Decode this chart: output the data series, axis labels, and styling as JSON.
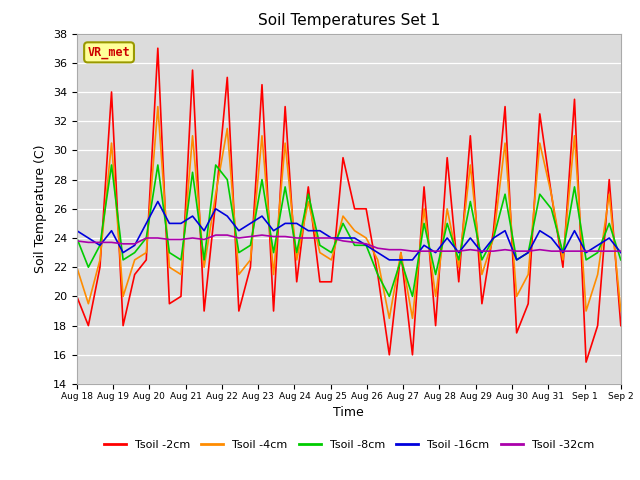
{
  "title": "Soil Temperatures Set 1",
  "xlabel": "Time",
  "ylabel": "Soil Temperature (C)",
  "ylim": [
    14,
    38
  ],
  "yticks": [
    14,
    16,
    18,
    20,
    22,
    24,
    26,
    28,
    30,
    32,
    34,
    36,
    38
  ],
  "bg_color": "#dcdcdc",
  "annotation_text": "VR_met",
  "annotation_color": "#cc0000",
  "annotation_bg": "#ffff99",
  "annotation_border": "#999900",
  "x_labels": [
    "Aug 18",
    "Aug 19",
    "Aug 20",
    "Aug 21",
    "Aug 22",
    "Aug 23",
    "Aug 24",
    "Aug 25",
    "Aug 26",
    "Aug 27",
    "Aug 28",
    "Aug 29",
    "Aug 30",
    "Aug 31",
    "Sep 1",
    "Sep 2"
  ],
  "colors": {
    "Tsoil -2cm": "#ff0000",
    "Tsoil -4cm": "#ff8c00",
    "Tsoil -8cm": "#00cc00",
    "Tsoil -16cm": "#0000dd",
    "Tsoil -32cm": "#aa00aa"
  },
  "series": {
    "Tsoil -2cm": [
      20.0,
      18.0,
      22.0,
      34.0,
      18.0,
      21.5,
      22.5,
      37.0,
      19.5,
      20.0,
      35.5,
      19.0,
      26.5,
      35.0,
      19.0,
      22.0,
      34.5,
      19.0,
      33.0,
      21.0,
      27.5,
      21.0,
      21.0,
      29.5,
      26.0,
      26.0,
      21.5,
      16.0,
      23.0,
      16.0,
      27.5,
      18.0,
      29.5,
      21.0,
      31.0,
      19.5,
      24.5,
      33.0,
      17.5,
      19.5,
      32.5,
      27.0,
      22.0,
      33.5,
      15.5,
      18.0,
      28.0,
      18.0
    ],
    "Tsoil -4cm": [
      22.0,
      19.5,
      22.5,
      30.5,
      20.0,
      22.5,
      23.0,
      33.0,
      22.0,
      21.5,
      31.0,
      22.0,
      27.0,
      31.5,
      21.5,
      22.5,
      31.0,
      21.5,
      30.5,
      22.5,
      26.5,
      23.0,
      22.5,
      25.5,
      24.5,
      24.0,
      22.5,
      18.5,
      23.0,
      18.5,
      26.0,
      20.0,
      26.0,
      22.0,
      29.0,
      21.5,
      24.0,
      30.5,
      20.0,
      21.5,
      30.5,
      27.0,
      22.5,
      31.0,
      19.0,
      21.5,
      27.0,
      19.0
    ],
    "Tsoil -8cm": [
      24.0,
      22.0,
      23.5,
      29.0,
      22.5,
      23.0,
      24.0,
      29.0,
      23.0,
      22.5,
      28.5,
      22.5,
      29.0,
      28.0,
      23.0,
      23.5,
      28.0,
      23.0,
      27.5,
      23.0,
      27.0,
      23.5,
      23.0,
      25.0,
      23.5,
      23.5,
      21.5,
      20.0,
      22.5,
      20.0,
      25.0,
      21.5,
      25.0,
      22.5,
      26.5,
      22.5,
      24.0,
      27.0,
      22.5,
      23.0,
      27.0,
      26.0,
      23.0,
      27.5,
      22.5,
      23.0,
      25.0,
      22.5
    ],
    "Tsoil -16cm": [
      24.5,
      24.0,
      23.5,
      24.5,
      23.0,
      23.5,
      25.0,
      26.5,
      25.0,
      25.0,
      25.5,
      24.5,
      26.0,
      25.5,
      24.5,
      25.0,
      25.5,
      24.5,
      25.0,
      25.0,
      24.5,
      24.5,
      24.0,
      24.0,
      24.0,
      23.5,
      23.0,
      22.5,
      22.5,
      22.5,
      23.5,
      23.0,
      24.0,
      23.0,
      24.0,
      23.0,
      24.0,
      24.5,
      22.5,
      23.0,
      24.5,
      24.0,
      23.0,
      24.5,
      23.0,
      23.5,
      24.0,
      23.0
    ],
    "Tsoil -32cm": [
      23.8,
      23.7,
      23.7,
      23.7,
      23.6,
      23.6,
      24.0,
      24.0,
      23.9,
      23.9,
      24.0,
      23.9,
      24.2,
      24.2,
      24.0,
      24.1,
      24.2,
      24.1,
      24.1,
      24.0,
      24.0,
      24.0,
      24.0,
      23.8,
      23.7,
      23.6,
      23.3,
      23.2,
      23.2,
      23.1,
      23.1,
      23.1,
      23.1,
      23.1,
      23.2,
      23.1,
      23.1,
      23.2,
      23.1,
      23.1,
      23.2,
      23.1,
      23.1,
      23.1,
      23.1,
      23.1,
      23.1,
      23.1
    ]
  }
}
